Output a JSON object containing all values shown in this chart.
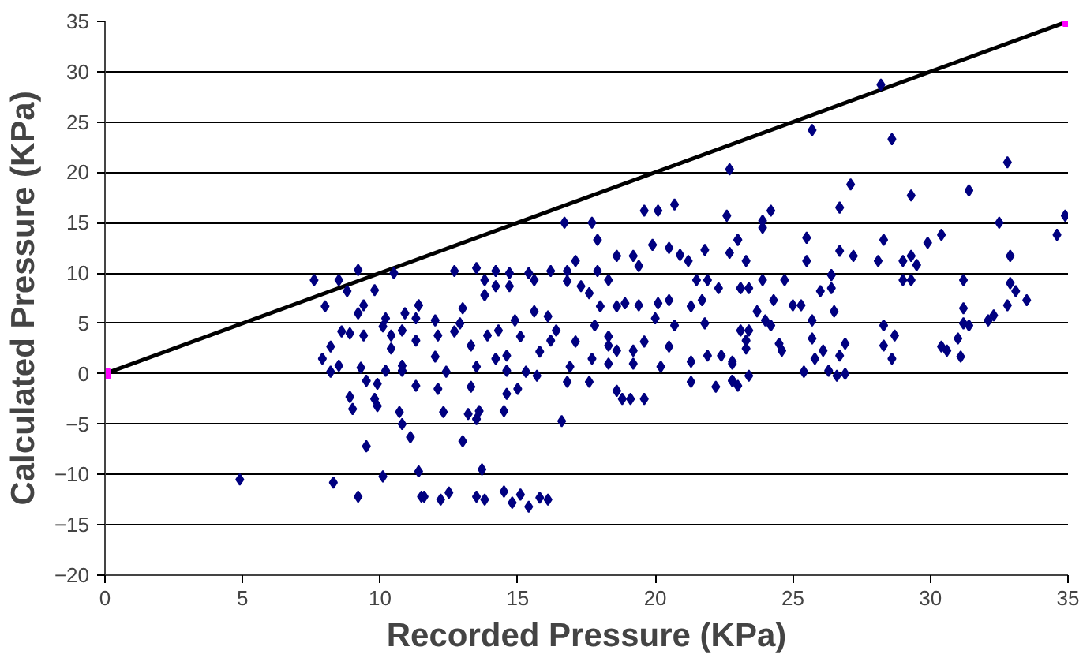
{
  "chart_data": {
    "type": "scatter",
    "xlabel": "Recorded Pressure (KPa)",
    "ylabel": "Calculated Pressure (KPa)",
    "xlim": [
      0,
      35
    ],
    "ylim": [
      -20,
      35
    ],
    "xticks": [
      0,
      5,
      10,
      15,
      20,
      25,
      30,
      35
    ],
    "yticks": [
      -20,
      -15,
      -10,
      -5,
      0,
      5,
      10,
      15,
      20,
      25,
      30,
      35
    ],
    "grid": "y",
    "series": [
      {
        "marker": "diamond",
        "color": "#000080",
        "x": [
          7.6,
          8.5,
          9.2,
          10.5,
          8.0,
          8.8,
          9.8,
          9.4,
          9.2,
          8.6,
          8.9,
          9.4,
          8.2,
          7.9,
          8.5,
          8.2,
          9.3,
          9.5,
          9.9,
          10.2,
          10.8,
          8.9,
          9.0,
          9.8,
          9.9,
          10.7,
          10.8,
          11.1,
          9.5,
          10.1,
          11.4,
          4.9,
          8.3,
          9.2,
          11.5,
          10.1,
          10.4,
          10.8,
          10.4,
          11.3,
          10.9,
          11.4,
          11.3,
          10.8,
          11.3,
          10.2,
          16.7,
          17.7,
          17.9,
          19.6,
          20.1,
          20.7,
          22.6,
          23.0,
          12.7,
          13.5,
          13.8,
          14.2,
          14.2,
          14.7,
          14.7,
          13.8,
          15.4,
          15.6,
          16.2,
          16.8,
          16.8,
          17.1,
          17.3,
          17.6,
          17.9,
          18.3,
          18.6,
          19.2,
          19.4,
          19.9,
          20.5,
          20.9,
          21.8,
          21.2,
          21.5,
          21.9,
          22.3,
          22.7,
          23.1,
          11.4,
          13.0,
          12.0,
          12.9,
          14.9,
          15.6,
          16.1,
          16.4,
          18.0,
          18.6,
          18.9,
          19.4,
          20.1,
          20.5,
          21.3,
          21.7,
          20.0,
          17.8,
          18.3,
          20.7,
          21.8,
          23.1,
          12.1,
          12.7,
          13.9,
          13.3,
          14.3,
          15.1,
          16.2,
          15.8,
          17.1,
          18.3,
          18.6,
          19.2,
          19.6,
          20.5,
          21.3,
          21.9,
          22.4,
          22.8,
          12.0,
          12.4,
          13.5,
          14.2,
          14.6,
          14.6,
          15.3,
          15.7,
          16.9,
          17.7,
          18.3,
          19.2,
          20.2,
          21.3,
          22.2,
          22.8,
          16.8,
          17.6,
          18.6,
          18.8,
          19.1,
          19.6,
          13.3,
          12.1,
          14.6,
          15.0,
          12.3,
          13.2,
          13.5,
          13.6,
          14.5,
          16.6,
          13.0,
          13.7,
          11.6,
          12.2,
          12.5,
          13.5,
          13.8,
          14.5,
          14.8,
          15.1,
          15.4,
          15.8,
          16.1,
          28.2,
          25.7,
          28.6,
          32.8,
          22.7,
          27.1,
          29.3,
          31.4,
          26.7,
          24.2,
          23.9,
          23.9,
          34.9,
          34.6,
          32.5,
          30.4,
          29.9,
          28.3,
          25.5,
          23.0,
          26.7,
          27.2,
          28.1,
          29.0,
          29.3,
          29.5,
          25.5,
          23.3,
          32.9,
          26.4,
          29.0,
          29.3,
          31.2,
          24.7,
          23.9,
          23.1,
          23.4,
          26.4,
          26.0,
          32.9,
          33.1,
          33.5,
          32.8,
          24.3,
          25.0,
          25.3,
          23.7,
          26.5,
          25.7,
          31.2,
          32.3,
          32.1,
          24.0,
          24.2,
          23.4,
          31.2,
          31.4,
          28.3,
          28.7,
          25.7,
          23.3,
          23.3,
          24.5,
          24.6,
          26.1,
          26.9,
          28.3,
          30.4,
          30.6,
          31.0,
          25.8,
          26.7,
          28.6,
          31.1,
          22.8,
          25.4,
          26.3,
          26.6,
          26.9,
          23.4,
          22.8,
          23.0
        ],
        "values": [
          9.3,
          9.3,
          10.3,
          10,
          6.7,
          8.2,
          8.3,
          6.8,
          6,
          4.2,
          4,
          3.8,
          2.7,
          1.5,
          0.8,
          0.2,
          0.6,
          -0.7,
          -1,
          0.3,
          0.3,
          -2.3,
          -3.5,
          -2.5,
          -3.2,
          -3.8,
          -5,
          -6.3,
          -7.2,
          -10.2,
          -9.7,
          -10.5,
          -10.8,
          -12.2,
          -12.2,
          4.7,
          3.8,
          4.3,
          2.5,
          3.3,
          6,
          6.8,
          5.5,
          0.8,
          -1.2,
          5.5,
          15,
          15,
          13.3,
          16.2,
          16.2,
          16.8,
          15.7,
          13.3,
          10.2,
          10.5,
          9.3,
          10.2,
          8.7,
          10,
          8.7,
          7.8,
          10,
          9.3,
          10.2,
          10.2,
          9.2,
          11.2,
          8.7,
          8,
          10.2,
          9.3,
          11.7,
          11.7,
          10.7,
          12.8,
          12.5,
          11.8,
          12.3,
          11.2,
          9.3,
          9.3,
          8.5,
          12,
          8.5,
          6.8,
          6.5,
          5.3,
          5,
          5.3,
          6.2,
          5.7,
          4.3,
          6.7,
          6.7,
          7,
          6.8,
          7,
          7.3,
          6.7,
          7.3,
          5.5,
          4.8,
          3.7,
          4.8,
          5,
          4.3,
          3.8,
          4.2,
          3.8,
          2.8,
          4.3,
          3.7,
          3.3,
          2.2,
          3.2,
          2.8,
          2.3,
          2.3,
          3.2,
          2.7,
          1.2,
          1.8,
          1.8,
          1,
          1.7,
          0.2,
          0.7,
          1.5,
          1.8,
          0.3,
          0.2,
          -0.2,
          0.7,
          1.5,
          1,
          1,
          0.7,
          -0.8,
          -1.3,
          -0.7,
          -0.8,
          -0.8,
          -1.7,
          -2.5,
          -2.5,
          -2.5,
          -1.3,
          -1.5,
          -2,
          -1.5,
          -3.8,
          -4,
          -4.5,
          -3.7,
          -3.7,
          -4.7,
          -6.7,
          -9.5,
          -12.2,
          -12.5,
          -11.8,
          -12.2,
          -12.5,
          -11.7,
          -12.8,
          -12,
          -13.2,
          -12.3,
          -12.5,
          28.7,
          24.2,
          23.3,
          21,
          20.3,
          18.8,
          17.7,
          18.2,
          16.5,
          16.2,
          15.2,
          14.5,
          15.7,
          13.8,
          15,
          13.8,
          13,
          13.3,
          13.5,
          13.3,
          12.2,
          11.7,
          11.2,
          11.2,
          11.7,
          10.8,
          11.2,
          11.2,
          11.7,
          9.8,
          9.3,
          9.3,
          9.3,
          9.3,
          9.3,
          8.5,
          8.5,
          8.5,
          8.2,
          9,
          8.2,
          7.3,
          6.8,
          7.3,
          6.8,
          6.8,
          6.2,
          6.2,
          5.3,
          6.5,
          5.8,
          5.3,
          5.3,
          4.8,
          4.3,
          5,
          4.8,
          4.8,
          3.8,
          3.5,
          3.3,
          2.5,
          3,
          2.3,
          2.3,
          3,
          2.8,
          2.7,
          2.3,
          3.5,
          1.5,
          1.8,
          1.5,
          1.7,
          1.2,
          0.2,
          0.3,
          -0.2,
          0,
          -0.2,
          -0.7,
          -1.2
        ]
      },
      {
        "type": "line",
        "marker": "none",
        "color": "#000000",
        "x": [
          0,
          35
        ],
        "values": [
          0,
          35
        ]
      },
      {
        "type": "scatter",
        "marker": "square",
        "color": "#ff00ff",
        "x": [
          0,
          35
        ],
        "values": [
          0,
          35
        ]
      }
    ]
  }
}
